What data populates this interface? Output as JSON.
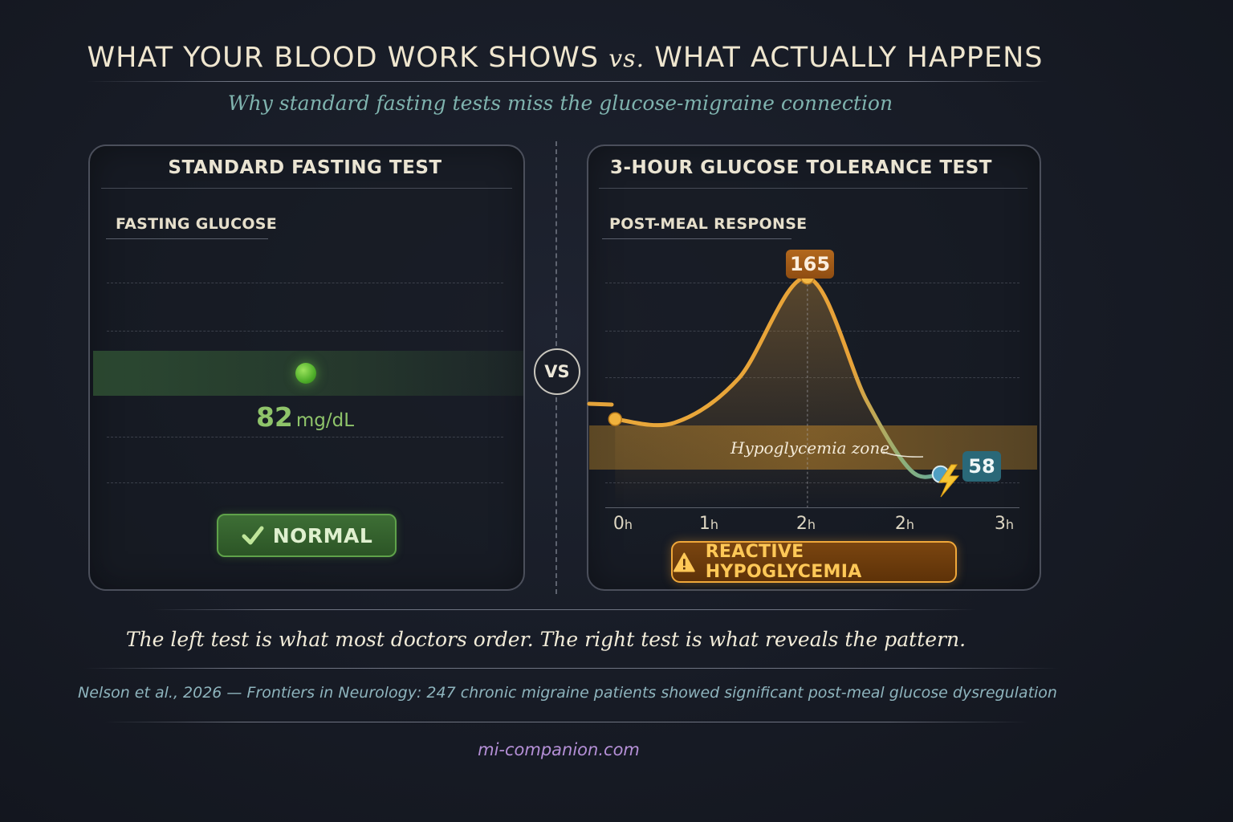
{
  "title": {
    "part1": "WHAT YOUR BLOOD WORK SHOWS",
    "vs": "vs.",
    "part2": "WHAT ACTUALLY HAPPENS"
  },
  "subtitle": "Why standard fasting tests miss the glucose-migraine connection",
  "left_panel": {
    "title": "STANDARD FASTING TEST",
    "section_label": "FASTING GLUCOSE",
    "value": "82",
    "unit": "mg/dL",
    "badge": "NORMAL",
    "badge_icon": "check-icon",
    "dot_color": "#6cc63c"
  },
  "vs_label": "VS",
  "right_panel": {
    "title": "3-HOUR GLUCOSE TOLERANCE TEST",
    "section_label": "POST-MEAL RESPONSE",
    "peak_label": "165",
    "low_label": "58",
    "zone_label": "Hypoglycemia zone",
    "warning": "REACTIVE HYPOGLYCEMIA",
    "warning_icon": "warning-triangle-icon",
    "low_icon": "lightning-bolt-icon",
    "x_ticks": [
      {
        "num": "0",
        "unit": "h"
      },
      {
        "num": "1",
        "unit": "h"
      },
      {
        "num": "2",
        "unit": "h"
      },
      {
        "num": "2",
        "unit": "h"
      },
      {
        "num": "3",
        "unit": "h"
      }
    ]
  },
  "chart_data": [
    {
      "type": "scatter",
      "title": "STANDARD FASTING TEST",
      "ylabel": "FASTING GLUCOSE",
      "values": [
        82
      ],
      "units": "mg/dL",
      "status": "NORMAL",
      "colors": {
        "point": "#6cc63c",
        "band": "#3c6e3c"
      }
    },
    {
      "type": "line",
      "title": "3-HOUR GLUCOSE TOLERANCE TEST",
      "ylabel": "POST-MEAL RESPONSE",
      "x_tick_labels": [
        "0h",
        "1h",
        "2h",
        "2h",
        "3h"
      ],
      "series": [
        {
          "values": [
            {
              "x": 0.0,
              "y": 88
            },
            {
              "x": 0.6,
              "y": 86
            },
            {
              "x": 1.25,
              "y": 110
            },
            {
              "x": 1.95,
              "y": 165
            },
            {
              "x": 2.55,
              "y": 98
            },
            {
              "x": 3.0,
              "y": 60
            },
            {
              "x": 3.3,
              "y": 58
            }
          ]
        }
      ],
      "annotations": [
        {
          "x": 1.95,
          "y": 165,
          "label": "165"
        },
        {
          "x": 3.3,
          "y": 58,
          "label": "58"
        },
        {
          "label": "Hypoglycemia zone",
          "y_range": [
            55,
            70
          ]
        }
      ],
      "xlim": [
        -0.1,
        4.1
      ],
      "ylim": [
        40,
        185
      ],
      "status": "REACTIVE HYPOGLYCEMIA",
      "colors": {
        "line_start": "#e9a83a",
        "line_end": "#4fa3a6",
        "zone": "#a87828",
        "peak_badge": "#a35c18",
        "low_badge": "#2a6878"
      }
    }
  ],
  "takeaway": "The left test is what most doctors order. The right test is what reveals the pattern.",
  "citation": "Nelson et al., 2026 — Frontiers in Neurology: 247 chronic migraine patients showed significant post-meal glucose dysregulation",
  "website": "mi-companion.com"
}
